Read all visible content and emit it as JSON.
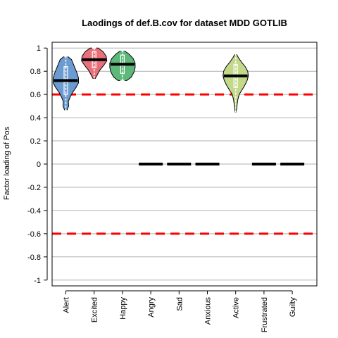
{
  "chart_data": {
    "type": "violin",
    "title": "Laodings of def.B.cov for dataset MDD GOTLIB",
    "xlabel": "",
    "ylabel": "Factor loading of Pos",
    "ylim": [
      -1.05,
      1.05
    ],
    "yticks": [
      -1,
      -0.8,
      -0.6,
      -0.4,
      -0.2,
      0,
      0.2,
      0.4,
      0.6,
      0.8,
      1
    ],
    "ytick_labels": [
      "-1",
      "-0.8",
      "-0.6",
      "-0.4",
      "-0.2",
      "0",
      "0.2",
      "0.4",
      "0.6",
      "0.8",
      "1"
    ],
    "grid": "horizontal",
    "threshold_lines": [
      0.6,
      -0.6
    ],
    "threshold_color": "#ff0000",
    "categories": [
      "Alert",
      "Excited",
      "Happy",
      "Angry",
      "Sad",
      "Anxious",
      "Active",
      "Frustrated",
      "Guilty"
    ],
    "series": [
      {
        "category": "Alert",
        "median": 0.72,
        "min": 0.46,
        "max": 0.93,
        "q1": 0.6,
        "q3": 0.84,
        "color": "#6b9bd1",
        "profile": [
          [
            0.46,
            0.08
          ],
          [
            0.5,
            0.22
          ],
          [
            0.54,
            0.2
          ],
          [
            0.58,
            0.35
          ],
          [
            0.62,
            0.55
          ],
          [
            0.66,
            0.8
          ],
          [
            0.7,
            1.0
          ],
          [
            0.74,
            1.0
          ],
          [
            0.78,
            0.9
          ],
          [
            0.82,
            0.75
          ],
          [
            0.86,
            0.6
          ],
          [
            0.9,
            0.45
          ],
          [
            0.93,
            0.12
          ]
        ]
      },
      {
        "category": "Excited",
        "median": 0.9,
        "min": 0.73,
        "max": 1.0,
        "q1": 0.83,
        "q3": 0.97,
        "color": "#e8707a",
        "profile": [
          [
            0.73,
            0.05
          ],
          [
            0.77,
            0.25
          ],
          [
            0.81,
            0.45
          ],
          [
            0.85,
            0.75
          ],
          [
            0.89,
            1.0
          ],
          [
            0.93,
            0.95
          ],
          [
            0.97,
            0.7
          ],
          [
            1.0,
            0.3
          ]
        ]
      },
      {
        "category": "Happy",
        "median": 0.86,
        "min": 0.72,
        "max": 0.98,
        "q1": 0.78,
        "q3": 0.94,
        "color": "#5db87a",
        "profile": [
          [
            0.72,
            0.35
          ],
          [
            0.75,
            0.7
          ],
          [
            0.79,
            0.9
          ],
          [
            0.83,
            1.0
          ],
          [
            0.87,
            1.0
          ],
          [
            0.91,
            0.85
          ],
          [
            0.95,
            0.5
          ],
          [
            0.98,
            0.1
          ]
        ]
      },
      {
        "category": "Angry",
        "median": 0.0
      },
      {
        "category": "Sad",
        "median": 0.0
      },
      {
        "category": "Anxious",
        "median": 0.0
      },
      {
        "category": "Active",
        "median": 0.76,
        "min": 0.44,
        "max": 0.95,
        "q1": 0.66,
        "q3": 0.86,
        "color": "#c3d98a",
        "profile": [
          [
            0.44,
            0.03
          ],
          [
            0.48,
            0.08
          ],
          [
            0.52,
            0.12
          ],
          [
            0.56,
            0.18
          ],
          [
            0.6,
            0.28
          ],
          [
            0.64,
            0.5
          ],
          [
            0.68,
            0.72
          ],
          [
            0.72,
            0.9
          ],
          [
            0.76,
            1.0
          ],
          [
            0.8,
            0.95
          ],
          [
            0.84,
            0.75
          ],
          [
            0.88,
            0.45
          ],
          [
            0.92,
            0.2
          ],
          [
            0.95,
            0.05
          ]
        ]
      },
      {
        "category": "Frustrated",
        "median": 0.0
      },
      {
        "category": "Guilty",
        "median": 0.0
      }
    ]
  }
}
